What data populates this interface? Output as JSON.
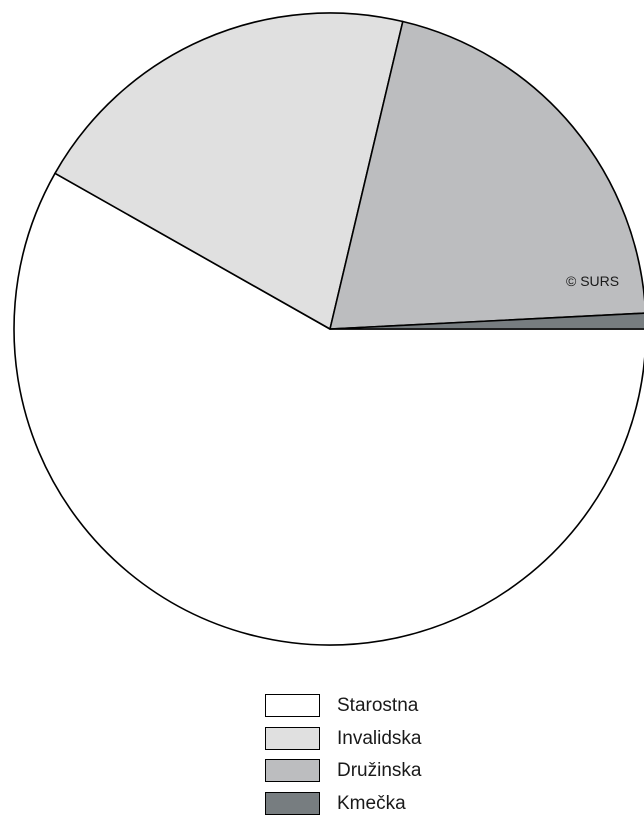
{
  "chart_data": {
    "type": "pie",
    "start_angle_deg": 0,
    "direction": "clockwise",
    "slices": [
      {
        "label": "Starostna",
        "value": 58.2,
        "color": "#ffffff"
      },
      {
        "label": "Invalidska",
        "value": 20.5,
        "color": "#e0e0e0"
      },
      {
        "label": "Družinska",
        "value": 20.5,
        "color": "#bcbdbf"
      },
      {
        "label": "Kmečka",
        "value": 0.8,
        "color": "#777d80"
      }
    ],
    "legend_position": "bottom"
  },
  "copyright": "© SURS"
}
